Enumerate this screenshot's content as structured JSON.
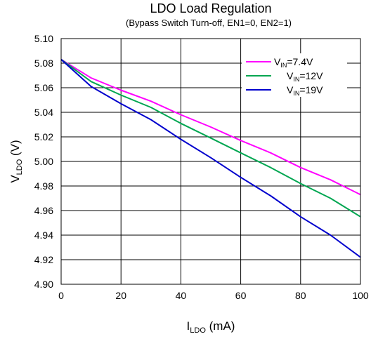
{
  "chart_data": {
    "type": "line",
    "title": "LDO Load Regulation",
    "subtitle": "(Bypass Switch Turn-off, EN1=0, EN2=1)",
    "xlabel": {
      "main": "I",
      "sub": "LDO",
      "suffix": " (mA)"
    },
    "ylabel": {
      "main": "V",
      "sub": "LDO",
      "suffix": " (V)"
    },
    "xlim": [
      0,
      100
    ],
    "ylim": [
      4.9,
      5.1
    ],
    "x_ticks": [
      0,
      20,
      40,
      60,
      80,
      100
    ],
    "y_ticks": [
      4.9,
      4.92,
      4.94,
      4.96,
      4.98,
      5.0,
      5.02,
      5.04,
      5.06,
      5.08,
      5.1
    ],
    "x_tick_labels": [
      "0",
      "20",
      "40",
      "60",
      "80",
      "100"
    ],
    "y_tick_labels": [
      "4.90",
      "4.92",
      "4.94",
      "4.96",
      "4.98",
      "5.00",
      "5.02",
      "5.04",
      "5.06",
      "5.08",
      "5.10"
    ],
    "grid": true,
    "legend_position": "top-right",
    "series": [
      {
        "name_main": "V",
        "name_sub": "IN",
        "name_suffix": "=7.4V",
        "color": "#ff00ff",
        "x": [
          0,
          10,
          20,
          30,
          40,
          50,
          60,
          70,
          80,
          90,
          100
        ],
        "y": [
          5.083,
          5.068,
          5.058,
          5.049,
          5.038,
          5.028,
          5.017,
          5.007,
          4.995,
          4.985,
          4.973
        ]
      },
      {
        "name_main": "V",
        "name_sub": "IN",
        "name_suffix": "=12V",
        "color": "#00a651",
        "x": [
          0,
          10,
          20,
          30,
          40,
          50,
          60,
          70,
          80,
          90,
          100
        ],
        "y": [
          5.083,
          5.065,
          5.054,
          5.044,
          5.031,
          5.019,
          5.007,
          4.995,
          4.982,
          4.97,
          4.955
        ]
      },
      {
        "name_main": "V",
        "name_sub": "IN",
        "name_suffix": "=19V",
        "color": "#0000cd",
        "x": [
          0,
          10,
          20,
          30,
          40,
          50,
          60,
          70,
          80,
          90,
          100
        ],
        "y": [
          5.083,
          5.061,
          5.047,
          5.034,
          5.018,
          5.003,
          4.987,
          4.972,
          4.955,
          4.94,
          4.922
        ]
      }
    ]
  }
}
